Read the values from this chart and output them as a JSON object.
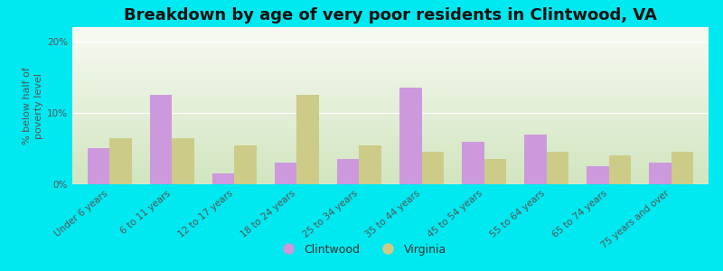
{
  "categories": [
    "Under 6 years",
    "6 to 11 years",
    "12 to 17 years",
    "18 to 24 years",
    "25 to 34 years",
    "35 to 44 years",
    "45 to 54 years",
    "55 to 64 years",
    "65 to 74 years",
    "75 years and over"
  ],
  "clintwood": [
    5.0,
    12.5,
    1.5,
    3.0,
    3.5,
    13.5,
    6.0,
    7.0,
    2.5,
    3.0
  ],
  "virginia": [
    6.5,
    6.5,
    5.5,
    12.5,
    5.5,
    4.5,
    3.5,
    4.5,
    4.0,
    4.5
  ],
  "clintwood_color": "#cc99dd",
  "virginia_color": "#cccc88",
  "background_outer": "#00e8f0",
  "title": "Breakdown by age of very poor residents in Clintwood, VA",
  "ylabel": "% below half of\npoverty level",
  "ylim": [
    0,
    22
  ],
  "yticks": [
    0,
    10,
    20
  ],
  "ytick_labels": [
    "0%",
    "10%",
    "20%"
  ],
  "bar_width": 0.35,
  "title_fontsize": 13,
  "axis_label_fontsize": 8,
  "tick_fontsize": 7.5,
  "legend_fontsize": 9
}
